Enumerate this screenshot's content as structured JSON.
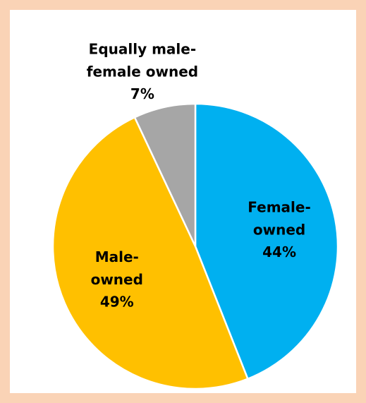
{
  "chart_data": {
    "type": "pie",
    "categories": [
      "Female-owned",
      "Male-owned",
      "Equally male-female owned"
    ],
    "values": [
      44,
      49,
      7
    ],
    "value_labels": [
      "44%",
      "49%",
      "7%"
    ],
    "colors": [
      "#00b0f0",
      "#ffc000",
      "#a6a6a6"
    ]
  }
}
